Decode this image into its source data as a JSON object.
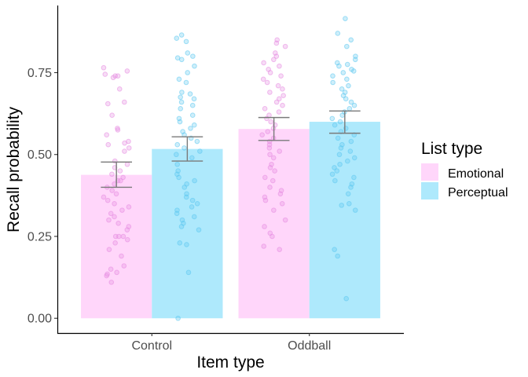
{
  "chart_data": {
    "type": "bar",
    "xlabel": "Item type",
    "ylabel": "Recall probability",
    "categories": [
      "Control",
      "Oddball"
    ],
    "y_ticks": [
      0.0,
      0.25,
      0.5,
      0.75
    ],
    "y_tick_labels": [
      "0.00",
      "0.25",
      "0.50",
      "0.75"
    ],
    "ylim": [
      -0.045,
      0.955
    ],
    "grid": false,
    "legend": {
      "title": "List type",
      "position": "right",
      "entries": [
        "Emotional",
        "Perceptual"
      ]
    },
    "series": [
      {
        "name": "Emotional",
        "color": "#ffd6fa",
        "point_color": "#e58be0",
        "values": [
          0.438,
          0.578
        ],
        "error_low": [
          0.4,
          0.543
        ],
        "error_high": [
          0.477,
          0.613
        ]
      },
      {
        "name": "Perceptual",
        "color": "#aee9fc",
        "point_color": "#5cc8f0",
        "values": [
          0.517,
          0.6
        ],
        "error_low": [
          0.48,
          0.565
        ],
        "error_high": [
          0.554,
          0.633
        ]
      }
    ],
    "points": [
      {
        "category": "Control",
        "series": "Emotional",
        "y": [
          0.765,
          0.755,
          0.745,
          0.74,
          0.735,
          0.74,
          0.7,
          0.655,
          0.62,
          0.58,
          0.54,
          0.535,
          0.53,
          0.52,
          0.51,
          0.48,
          0.47,
          0.46,
          0.45,
          0.44,
          0.43,
          0.42,
          0.42,
          0.41,
          0.4,
          0.39,
          0.38,
          0.37,
          0.36,
          0.35,
          0.34,
          0.33,
          0.32,
          0.31,
          0.3,
          0.29,
          0.28,
          0.27,
          0.25,
          0.25,
          0.25,
          0.24,
          0.23,
          0.21,
          0.19,
          0.16,
          0.15,
          0.14,
          0.135,
          0.13,
          0.11,
          0.56,
          0.66,
          0.575
        ]
      },
      {
        "category": "Control",
        "series": "Perceptual",
        "y": [
          0.865,
          0.855,
          0.845,
          0.81,
          0.8,
          0.795,
          0.79,
          0.77,
          0.75,
          0.73,
          0.72,
          0.69,
          0.685,
          0.675,
          0.67,
          0.66,
          0.65,
          0.64,
          0.62,
          0.61,
          0.6,
          0.59,
          0.58,
          0.57,
          0.56,
          0.55,
          0.54,
          0.53,
          0.52,
          0.51,
          0.5,
          0.49,
          0.47,
          0.45,
          0.44,
          0.43,
          0.42,
          0.41,
          0.4,
          0.38,
          0.37,
          0.36,
          0.35,
          0.34,
          0.33,
          0.32,
          0.31,
          0.3,
          0.29,
          0.28,
          0.27,
          0.23,
          0.225,
          0.14,
          0.0
        ]
      },
      {
        "category": "Oddball",
        "series": "Emotional",
        "y": [
          0.85,
          0.84,
          0.83,
          0.81,
          0.8,
          0.79,
          0.78,
          0.77,
          0.76,
          0.75,
          0.74,
          0.73,
          0.72,
          0.71,
          0.7,
          0.69,
          0.68,
          0.67,
          0.66,
          0.65,
          0.64,
          0.63,
          0.62,
          0.61,
          0.6,
          0.59,
          0.58,
          0.57,
          0.56,
          0.55,
          0.54,
          0.53,
          0.52,
          0.51,
          0.5,
          0.49,
          0.47,
          0.46,
          0.45,
          0.43,
          0.42,
          0.4,
          0.39,
          0.38,
          0.37,
          0.36,
          0.35,
          0.33,
          0.3,
          0.28,
          0.26,
          0.25,
          0.22,
          0.21
        ]
      },
      {
        "category": "Oddball",
        "series": "Perceptual",
        "y": [
          0.915,
          0.87,
          0.85,
          0.83,
          0.8,
          0.79,
          0.78,
          0.77,
          0.775,
          0.76,
          0.755,
          0.75,
          0.74,
          0.73,
          0.72,
          0.71,
          0.7,
          0.69,
          0.68,
          0.67,
          0.66,
          0.65,
          0.64,
          0.63,
          0.62,
          0.61,
          0.6,
          0.59,
          0.58,
          0.57,
          0.56,
          0.55,
          0.54,
          0.53,
          0.52,
          0.51,
          0.5,
          0.49,
          0.48,
          0.47,
          0.46,
          0.45,
          0.44,
          0.43,
          0.42,
          0.41,
          0.4,
          0.38,
          0.35,
          0.345,
          0.33,
          0.21,
          0.19,
          0.06
        ]
      }
    ]
  }
}
